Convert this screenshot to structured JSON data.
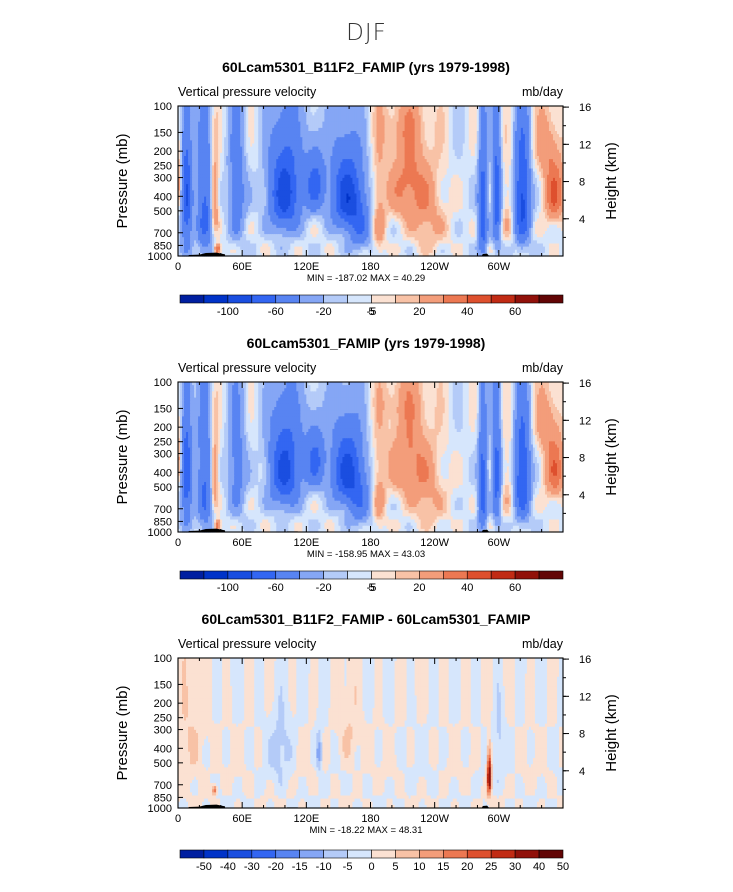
{
  "page_title": "DJF",
  "palettes": {
    "main": [
      "#001fa0",
      "#0033c8",
      "#1a4ee0",
      "#3366f2",
      "#5884f2",
      "#85a6f5",
      "#b4cbf8",
      "#d6e6fc",
      "#fbe1d2",
      "#f8c2a6",
      "#f39d7a",
      "#ec7852",
      "#de502e",
      "#c12b14",
      "#91110a",
      "#620505"
    ],
    "diff": [
      "#001fa0",
      "#0033c8",
      "#1a4ee0",
      "#3366f2",
      "#5884f2",
      "#85a6f5",
      "#b4cbf8",
      "#d6e6fc",
      "#fbe1d2",
      "#f8c2a6",
      "#f39d7a",
      "#ec7852",
      "#de502e",
      "#c12b14",
      "#91110a",
      "#620505"
    ]
  },
  "chart_data": [
    {
      "type": "heatmap",
      "title": "60Lcam5301_B11F2_FAMIP (yrs 1979-1998)",
      "left_label": "Vertical pressure velocity",
      "right_label": "mb/day",
      "ylabel": "Pressure (mb)",
      "ylabel_right": "Height (km)",
      "x_ticks": [
        "0",
        "60E",
        "120E",
        "180",
        "120W",
        "60W"
      ],
      "x_tick_lons": [
        0,
        60,
        120,
        180,
        240,
        300
      ],
      "xlim": [
        0,
        360
      ],
      "y_ticks": [
        "100",
        "150",
        "200",
        "250",
        "300",
        "400",
        "500",
        "700",
        "850",
        "1000"
      ],
      "y_tick_values": [
        100,
        150,
        200,
        250,
        300,
        400,
        500,
        700,
        850,
        1000
      ],
      "ylim": [
        1000,
        100
      ],
      "y_scale": "log",
      "height_ticks": [
        "16",
        "12",
        "8",
        "4"
      ],
      "height_values": [
        16,
        12,
        8,
        4
      ],
      "stats": "MIN =  -187.02   MAX =   40.29",
      "palette": "main",
      "colorbar_labels": [
        "-100",
        "-60",
        "-20",
        "-5",
        "5",
        "20",
        "40",
        "60"
      ],
      "variant": 0
    },
    {
      "type": "heatmap",
      "title": "60Lcam5301_FAMIP (yrs 1979-1998)",
      "left_label": "Vertical pressure velocity",
      "right_label": "mb/day",
      "ylabel": "Pressure (mb)",
      "ylabel_right": "Height (km)",
      "x_ticks": [
        "0",
        "60E",
        "120E",
        "180",
        "120W",
        "60W"
      ],
      "x_tick_lons": [
        0,
        60,
        120,
        180,
        240,
        300
      ],
      "xlim": [
        0,
        360
      ],
      "y_ticks": [
        "100",
        "150",
        "200",
        "250",
        "300",
        "400",
        "500",
        "700",
        "850",
        "1000"
      ],
      "y_tick_values": [
        100,
        150,
        200,
        250,
        300,
        400,
        500,
        700,
        850,
        1000
      ],
      "ylim": [
        1000,
        100
      ],
      "y_scale": "log",
      "height_ticks": [
        "16",
        "12",
        "8",
        "4"
      ],
      "height_values": [
        16,
        12,
        8,
        4
      ],
      "stats": "MIN =  -158.95   MAX =   43.03",
      "palette": "main",
      "colorbar_labels": [
        "-100",
        "-60",
        "-20",
        "-5",
        "5",
        "20",
        "40",
        "60"
      ],
      "variant": 1
    },
    {
      "type": "heatmap",
      "title": "60Lcam5301_B11F2_FAMIP - 60Lcam5301_FAMIP",
      "left_label": "Vertical pressure velocity",
      "right_label": "mb/day",
      "ylabel": "Pressure (mb)",
      "ylabel_right": "Height (km)",
      "x_ticks": [
        "0",
        "60E",
        "120E",
        "180",
        "120W",
        "60W"
      ],
      "x_tick_lons": [
        0,
        60,
        120,
        180,
        240,
        300
      ],
      "xlim": [
        0,
        360
      ],
      "y_ticks": [
        "100",
        "150",
        "200",
        "250",
        "300",
        "400",
        "500",
        "700",
        "850",
        "1000"
      ],
      "y_tick_values": [
        100,
        150,
        200,
        250,
        300,
        400,
        500,
        700,
        850,
        1000
      ],
      "ylim": [
        1000,
        100
      ],
      "y_scale": "log",
      "height_ticks": [
        "16",
        "12",
        "8",
        "4"
      ],
      "height_values": [
        16,
        12,
        8,
        4
      ],
      "stats": "MIN =  -18.22   MAX =   48.31",
      "palette": "diff",
      "colorbar_labels": [
        "-50",
        "-40",
        "-30",
        "-20",
        "-15",
        "-10",
        "-5",
        "0",
        "5",
        "10",
        "15",
        "20",
        "25",
        "30",
        "40",
        "50"
      ],
      "variant": 2
    }
  ]
}
